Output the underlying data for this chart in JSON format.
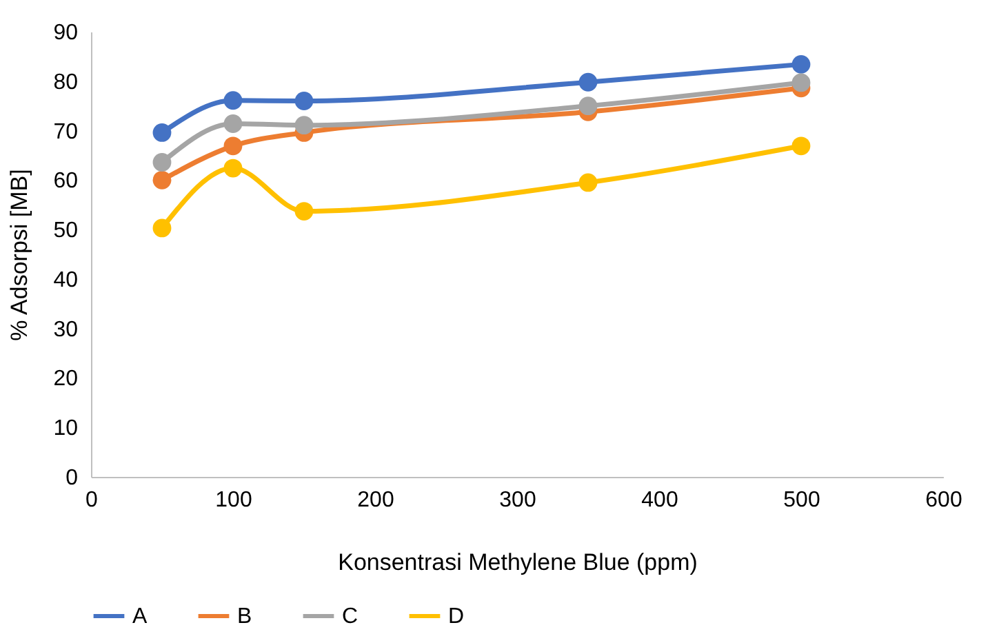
{
  "chart_data": {
    "type": "line",
    "xlabel": "Konsentrasi Methylene Blue (ppm)",
    "ylabel": "% Adsorpsi [MB]",
    "x": [
      50,
      100,
      150,
      350,
      500
    ],
    "series": [
      {
        "name": "A",
        "color": "#4472c4",
        "values": [
          69.6,
          76.1,
          76.0,
          79.8,
          83.4
        ]
      },
      {
        "name": "B",
        "color": "#ed7d31",
        "values": [
          60.0,
          66.9,
          69.6,
          73.8,
          78.6
        ]
      },
      {
        "name": "C",
        "color": "#a5a5a5",
        "values": [
          63.6,
          71.4,
          71.1,
          75.0,
          79.7
        ]
      },
      {
        "name": "D",
        "color": "#ffc000",
        "values": [
          50.3,
          62.4,
          53.7,
          59.5,
          66.9
        ]
      }
    ],
    "xlim": [
      0,
      600
    ],
    "xticks": [
      0,
      100,
      200,
      300,
      400,
      500,
      600
    ],
    "ylim": [
      0,
      90
    ],
    "yticks": [
      0,
      10,
      20,
      30,
      40,
      50,
      60,
      70,
      80,
      90
    ],
    "grid": false,
    "legend": "bottom",
    "marker": "circle",
    "line_style": "solid"
  }
}
